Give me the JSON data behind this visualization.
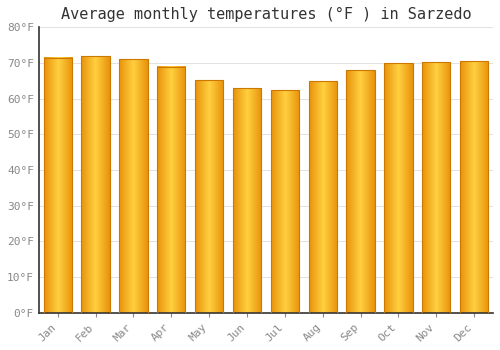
{
  "title": "Average monthly temperatures (°F ) in Sarzedo",
  "months": [
    "Jan",
    "Feb",
    "Mar",
    "Apr",
    "May",
    "Jun",
    "Jul",
    "Aug",
    "Sep",
    "Oct",
    "Nov",
    "Dec"
  ],
  "values": [
    71.5,
    72.0,
    71.2,
    69.0,
    65.3,
    63.0,
    62.5,
    65.0,
    68.0,
    70.0,
    70.2,
    70.5
  ],
  "bar_color_left": "#E8920A",
  "bar_color_mid": "#FFD040",
  "bar_color_right": "#E8920A",
  "bar_edge_color": "#CC7700",
  "background_color": "#FFFFFF",
  "grid_color": "#DDDDDD",
  "ylim": [
    0,
    80
  ],
  "yticks": [
    0,
    10,
    20,
    30,
    40,
    50,
    60,
    70,
    80
  ],
  "ytick_labels": [
    "0°F",
    "10°F",
    "20°F",
    "30°F",
    "40°F",
    "50°F",
    "60°F",
    "70°F",
    "80°F"
  ],
  "title_fontsize": 11,
  "tick_fontsize": 8,
  "bar_width": 0.75
}
